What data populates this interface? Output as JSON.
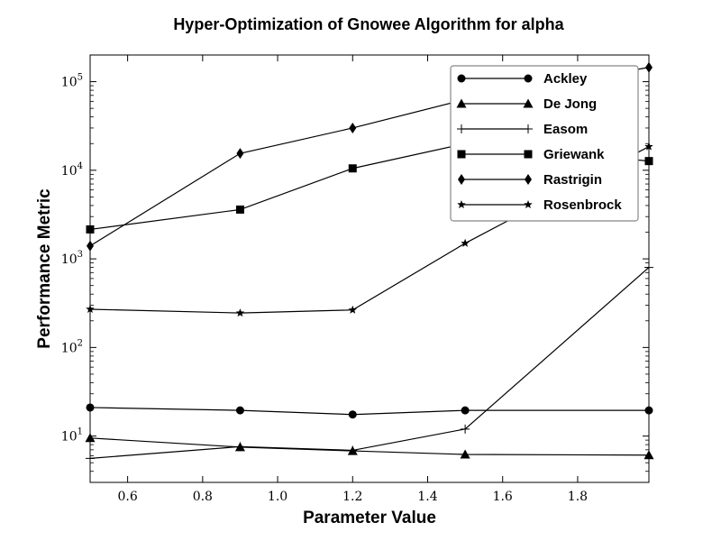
{
  "chart_data": {
    "type": "line",
    "title": "Hyper-Optimization of Gnowee Algorithm for alpha",
    "xlabel": "Parameter Value",
    "ylabel": "Performance Metric",
    "xscale": "linear",
    "yscale": "log",
    "xlim": [
      0.5,
      1.99
    ],
    "ylim": [
      3,
      200000
    ],
    "xticks": [
      0.6,
      0.8,
      1.0,
      1.2,
      1.4,
      1.6,
      1.8
    ],
    "xtick_labels": [
      "0.6",
      "0.8",
      "1.0",
      "1.2",
      "1.4",
      "1.6",
      "1.8"
    ],
    "yticks": [
      10,
      100,
      1000,
      10000,
      100000
    ],
    "ytick_labels": [
      {
        "base": "10",
        "exp": "1"
      },
      {
        "base": "10",
        "exp": "2"
      },
      {
        "base": "10",
        "exp": "3"
      },
      {
        "base": "10",
        "exp": "4"
      },
      {
        "base": "10",
        "exp": "5"
      }
    ],
    "grid": false,
    "legend_position": "top-right",
    "x": [
      0.5,
      0.9,
      1.2,
      1.5,
      1.99
    ],
    "series": [
      {
        "name": "Ackley",
        "marker": "circle",
        "values": [
          21,
          19.5,
          17.5,
          19.5,
          19.5
        ]
      },
      {
        "name": "De Jong",
        "marker": "triangle",
        "values": [
          9.5,
          7.5,
          6.8,
          6.2,
          6.1
        ]
      },
      {
        "name": "Easom",
        "marker": "plus",
        "values": [
          5.6,
          7.6,
          6.9,
          12,
          800
        ]
      },
      {
        "name": "Griewank",
        "marker": "square",
        "values": [
          2150,
          3600,
          10500,
          20000,
          12700
        ]
      },
      {
        "name": "Rastrigin",
        "marker": "diamond",
        "values": [
          1400,
          15500,
          30000,
          63000,
          145000
        ]
      },
      {
        "name": "Rosenbrock",
        "marker": "star",
        "values": [
          270,
          245,
          265,
          1500,
          18500
        ]
      }
    ]
  }
}
